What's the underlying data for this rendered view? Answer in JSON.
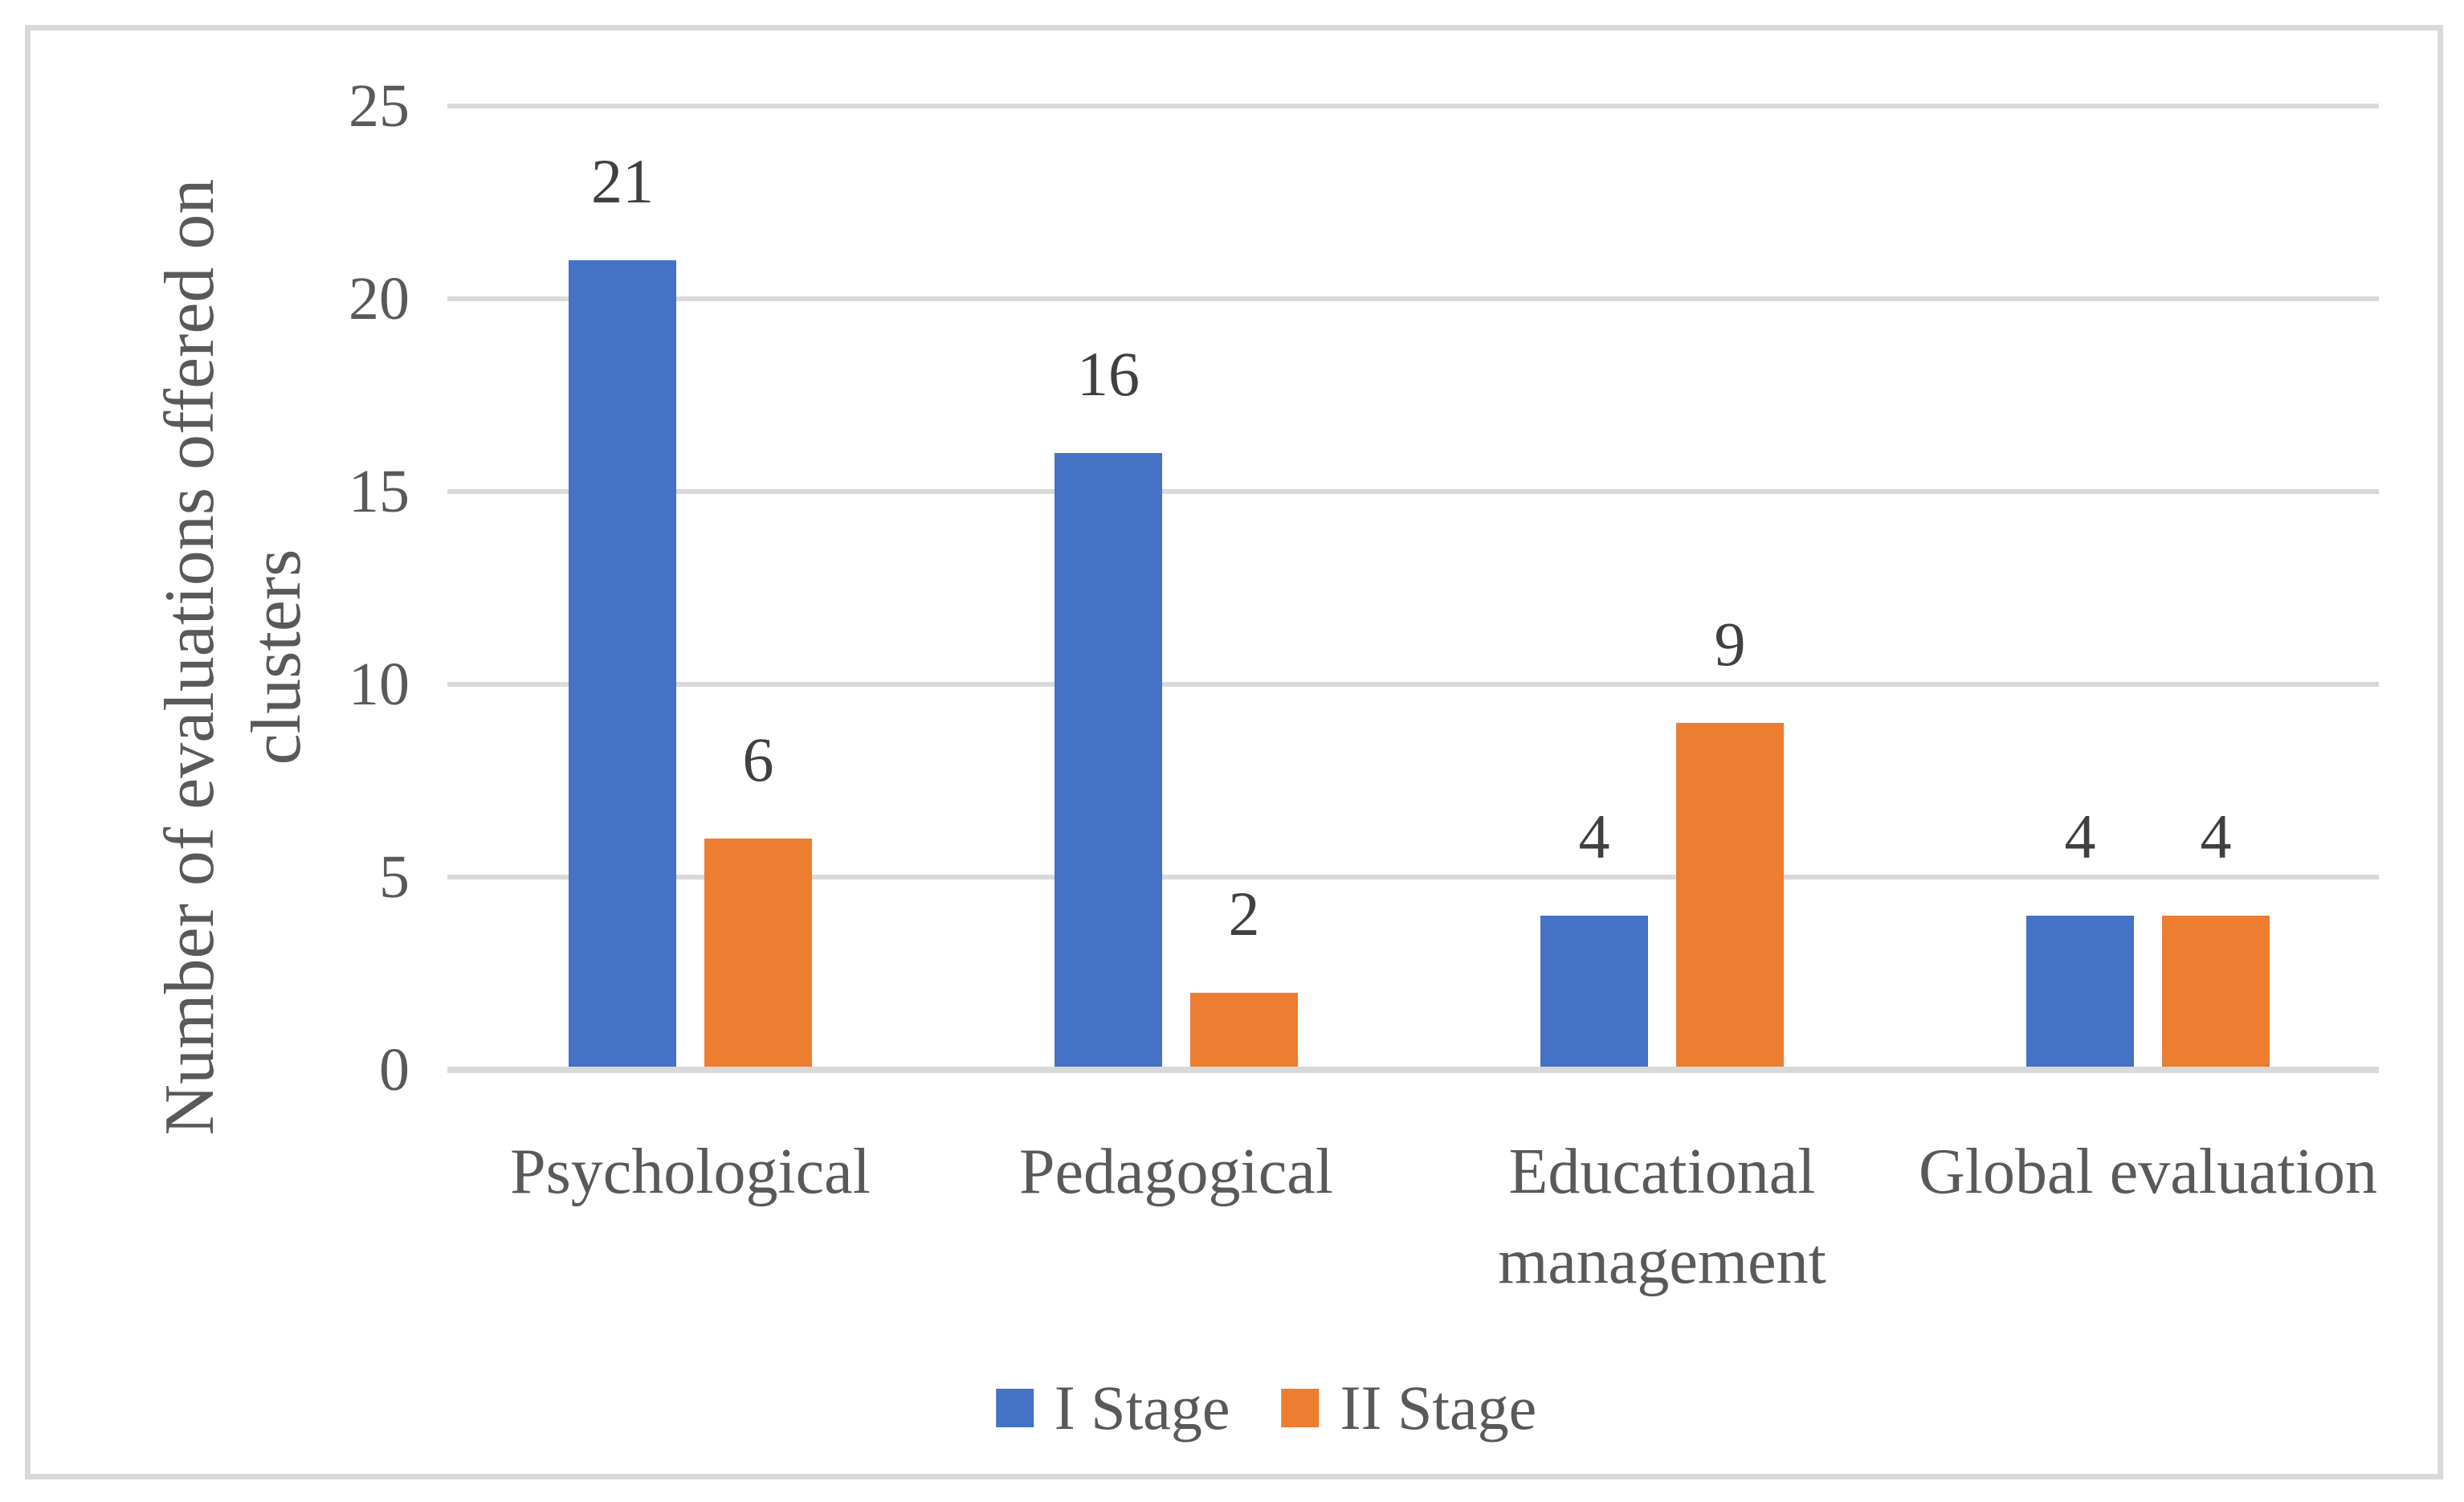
{
  "chart_data": {
    "type": "bar",
    "categories": [
      "Psychological",
      "Pedagogical",
      "Educational management",
      "Global evaluation"
    ],
    "series": [
      {
        "name": "I Stage",
        "color": "#4472C4",
        "values": [
          21,
          16,
          4,
          4
        ]
      },
      {
        "name": "II Stage",
        "color": "#ED7D31",
        "values": [
          6,
          2,
          9,
          4
        ]
      }
    ],
    "title": "",
    "xlabel": "",
    "ylabel": "Number of evaluations offered on clusters",
    "ylabel_lines": [
      "Number of evaluations offered on",
      "clusters"
    ],
    "ylim": [
      0,
      25
    ],
    "yticks": [
      0,
      5,
      10,
      15,
      20,
      25
    ],
    "grid": true,
    "data_labels": [
      [
        21,
        16,
        4,
        4
      ],
      [
        6,
        2,
        9,
        4
      ]
    ],
    "legend_position": "bottom-center"
  },
  "colors": {
    "background": "#FFFFFF",
    "frame_border": "#D9D9D9",
    "gridline": "#D9D9D9",
    "axis_line": "#D9D9D9",
    "tick_text": "#595959",
    "category_text": "#595959",
    "legend_text": "#595959",
    "axis_title_text": "#595959",
    "data_label_text": "#404040",
    "series_1": "#4472C4",
    "series_2": "#ED7D31"
  }
}
